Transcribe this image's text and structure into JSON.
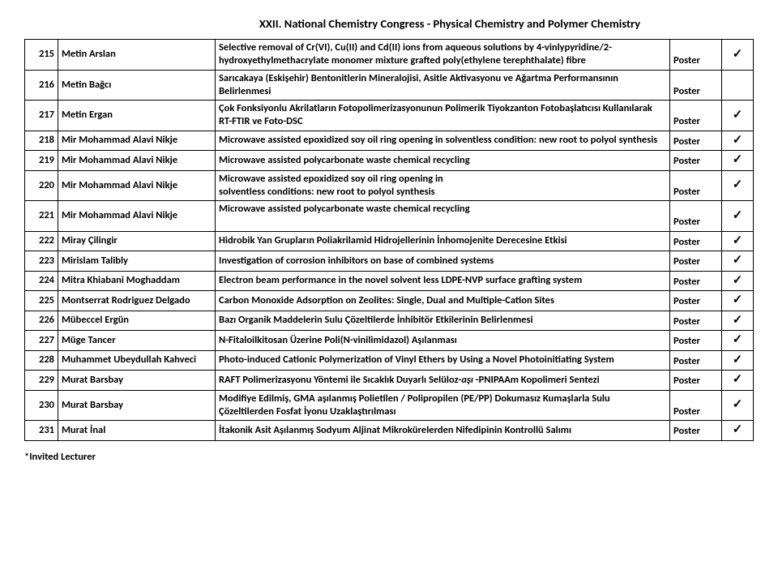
{
  "header": "XXII. National Chemistry Congress - Physical Chemistry and Polymer Chemistry",
  "footer": "*Invited Lecturer",
  "checkmark": "✓",
  "rows": [
    {
      "num": "215",
      "author": "Metin Arslan",
      "title": "Selective removal of Cr(VI), Cu(II) and Cd(II) ions from aqueous solutions by 4-vinlypyridine/2-hydroxyethylmethacrylate monomer mixture grafted poly(ethylene terephthalate) fibre",
      "type": "Poster",
      "check": true
    },
    {
      "num": "216",
      "author": "Metin Bağcı",
      "title": "Sarıcakaya (Eskişehir) Bentonitlerin Mineralojisi, Asitle Aktivasyonu ve Ağartma Performansının Belirlenmesi",
      "type": "Poster",
      "check": false
    },
    {
      "num": "217",
      "author": "Metin Ergan",
      "title": "Çok Fonksiyonlu Akrilatların Fotopolimerizasyonunun Polimerik Tiyokzanton Fotobaşlatıcısı Kullanılarak  RT-FTIR ve Foto-DSC",
      "type": "Poster",
      "check": true
    },
    {
      "num": "218",
      "author": "Mir Mohammad Alavi Nikje",
      "title": "Microwave assisted epoxidized soy oil ring opening in solventless condition: new root to polyol synthesis",
      "type": "Poster",
      "check": true
    },
    {
      "num": "219",
      "author": "Mir Mohammad Alavi Nikje",
      "title": "Microwave assisted polycarbonate waste chemical recycling",
      "type": "Poster",
      "check": true
    },
    {
      "num": "220",
      "author": "Mir Mohammad Alavi Nikje",
      "title": "Microwave assisted epoxidized soy oil ring opening in\nsolventless conditions: new root to polyol synthesis\n",
      "type": "Poster",
      "check": true
    },
    {
      "num": "221",
      "author": "Mir Mohammad Alavi Nikje",
      "title": "Microwave assisted polycarbonate waste chemical recycling\n\n",
      "type": "Poster",
      "check": true
    },
    {
      "num": "222",
      "author": "Miray Çilingir",
      "title": "Hidrobik Yan Grupların Poliakrilamid Hidrojellerinin İnhomojenite Derecesine Etkisi",
      "type": "Poster",
      "check": true
    },
    {
      "num": "223",
      "author": "Mirislam Talibly",
      "title": "Investigation of corrosion inhibitors on base of combined systems",
      "type": "Poster",
      "check": true
    },
    {
      "num": "224",
      "author": "Mitra Khiabani Moghaddam",
      "title": "Electron beam performance in the novel solvent less LDPE-NVP surface grafting system",
      "type": "Poster",
      "check": true
    },
    {
      "num": "225",
      "author": "Montserrat Rodriguez Delgado",
      "title": "Carbon Monoxide Adsorption on Zeolites: Single, Dual and Multiple-Cation Sites",
      "type": "Poster",
      "check": true
    },
    {
      "num": "226",
      "author": "Mübeccel Ergün",
      "title": "Bazı Organik Maddelerin Sulu Çözeltilerde İnhibitör Etkilerinin Belirlenmesi",
      "type": "Poster",
      "check": true
    },
    {
      "num": "227",
      "author": "Müge Tancer",
      "title": "N-Fitaloilkitosan Üzerine Poli(N-vinilimidazol) Aşılanması",
      "type": "Poster",
      "check": true
    },
    {
      "num": "228",
      "author": "Muhammet Ubeydullah Kahveci",
      "title": "Photo-induced Cationic Polymerization of Vinyl Ethers by Using a Novel Photoinitiating System",
      "type": "Poster",
      "check": true
    },
    {
      "num": "229",
      "author": "Murat Barsbay",
      "title": "RAFT Polimerizasyonu Yöntemi ile Sıcaklık Duyarlı Selüloz-aşı -PNIPAAm Kopolimeri Sentezi",
      "type": "Poster",
      "check": true,
      "italicPart": "aşı"
    },
    {
      "num": "230",
      "author": "Murat Barsbay",
      "title": "Modifiye Edilmiş, GMA aşılanmış Polietilen / Polipropilen (PE/PP) Dokumasız Kumaşlarla Sulu Çözeltilerden Fosfat İyonu Uzaklaştırılması",
      "type": "Poster",
      "check": true
    },
    {
      "num": "231",
      "author": "Murat İnal",
      "title": "İtakonik Asit Aşılanmış Sodyum Aljinat Mikrokürelerden Nifedipinin Kontrollü Salımı",
      "type": "Poster",
      "check": true
    }
  ]
}
